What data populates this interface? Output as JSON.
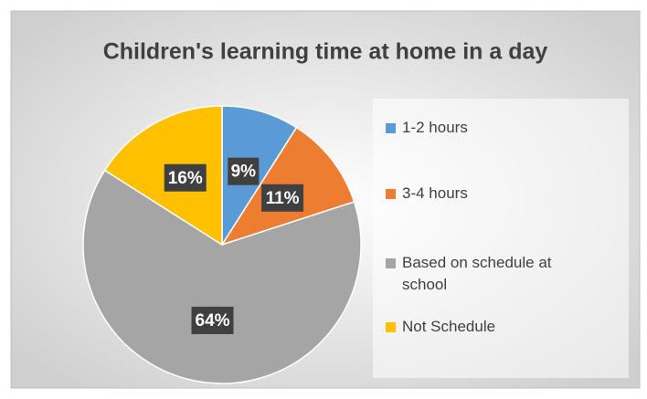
{
  "chart_data": {
    "type": "pie",
    "title": "Children's learning time at home in a day",
    "categories": [
      "1-2 hours",
      "3-4 hours",
      "Based on schedule at school",
      "Not Schedule"
    ],
    "values": [
      9,
      11,
      64,
      16
    ],
    "value_labels": [
      "9%",
      "11%",
      "64%",
      "16%"
    ],
    "colors": [
      "#5b9bd5",
      "#ed7d31",
      "#a5a5a5",
      "#ffc000"
    ],
    "legend": "right"
  }
}
